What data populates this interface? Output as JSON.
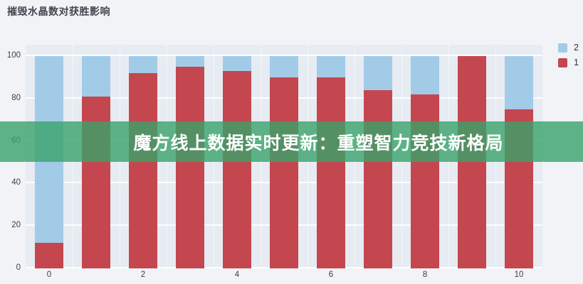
{
  "header": {
    "title": "摧毁水晶数对获胜影响"
  },
  "banner": {
    "text": "魔方线上数据实时更新：重塑智力竞技新格局",
    "bg_rgba": "rgba(58,162,106,0.8)",
    "text_color": "#ffffff"
  },
  "legend": {
    "items": [
      {
        "label": "2",
        "color": "#a2cbe8"
      },
      {
        "label": "1",
        "color": "#c4474f"
      }
    ]
  },
  "colors": {
    "plot_bg": "#e7ebf2",
    "page_bg": "#f1f3f6",
    "red_series": "#c4474f",
    "blue_series": "#a2cbe8"
  },
  "chart_data": {
    "type": "bar",
    "stacked": true,
    "title": "摧毁水晶数对获胜影响",
    "xlabel": "",
    "ylabel": "",
    "categories": [
      "0",
      "1",
      "2",
      "3",
      "4",
      "5",
      "6",
      "7",
      "8",
      "9",
      "10"
    ],
    "series": [
      {
        "name": "1",
        "color": "#c4474f",
        "values": [
          12,
          81,
          92,
          95,
          93,
          90,
          90,
          84,
          82,
          100,
          75
        ]
      },
      {
        "name": "2",
        "color": "#a2cbe8",
        "values": [
          88,
          19,
          8,
          5,
          7,
          10,
          10,
          16,
          18,
          0,
          25
        ]
      }
    ],
    "ylim": [
      0,
      100
    ],
    "yticks": [
      "0",
      "20",
      "40",
      "60",
      "80",
      "100"
    ],
    "xticks": [
      "0",
      "2",
      "4",
      "6",
      "8",
      "10"
    ],
    "grid": true,
    "legend_position": "top-right",
    "note_total": "each stack sums to 100"
  }
}
